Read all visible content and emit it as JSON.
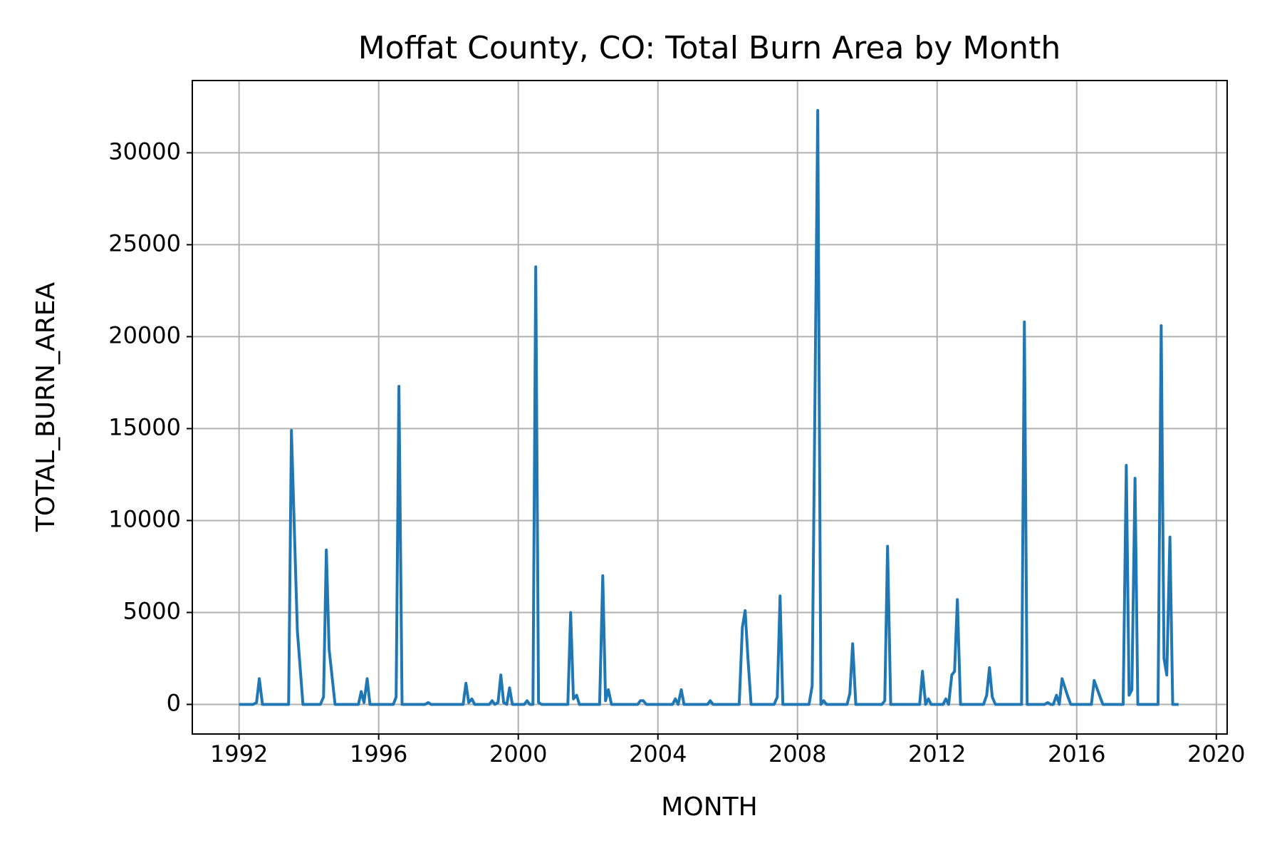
{
  "chart_data": {
    "type": "line",
    "title": "Moffat County, CO: Total Burn Area by Month",
    "x_label": "MONTH",
    "y_label": "TOTAL_BURN_AREA",
    "color": "#1f77b4",
    "grid": true,
    "xlim": [
      1990.66,
      2020.31
    ],
    "ylim": [
      -1610,
      33930
    ],
    "xticks": [
      1992,
      1996,
      2000,
      2004,
      2008,
      2012,
      2016,
      2020
    ],
    "yticks": [
      0,
      5000,
      10000,
      15000,
      20000,
      25000,
      30000
    ],
    "x": [
      1992.0,
      1992.4,
      1992.5,
      1992.58,
      1992.67,
      1993.42,
      1993.5,
      1993.67,
      1993.83,
      1994.33,
      1994.42,
      1994.5,
      1994.58,
      1994.75,
      1995.42,
      1995.5,
      1995.58,
      1995.67,
      1995.75,
      1996.42,
      1996.5,
      1996.58,
      1996.67,
      1997.33,
      1997.42,
      1997.5,
      1998.42,
      1998.5,
      1998.58,
      1998.67,
      1998.75,
      1999.17,
      1999.25,
      1999.33,
      1999.42,
      1999.5,
      1999.58,
      1999.67,
      1999.75,
      1999.83,
      2000.17,
      2000.25,
      2000.33,
      2000.42,
      2000.5,
      2000.58,
      2000.67,
      2000.75,
      2001.42,
      2001.5,
      2001.58,
      2001.67,
      2001.75,
      2002.33,
      2002.42,
      2002.5,
      2002.58,
      2002.67,
      2003.42,
      2003.5,
      2003.58,
      2003.67,
      2004.42,
      2004.5,
      2004.58,
      2004.67,
      2004.75,
      2005.42,
      2005.5,
      2005.58,
      2006.33,
      2006.42,
      2006.5,
      2006.58,
      2006.67,
      2007.33,
      2007.42,
      2007.5,
      2007.58,
      2008.33,
      2008.42,
      2008.58,
      2008.67,
      2008.75,
      2008.83,
      2009.42,
      2009.5,
      2009.58,
      2009.67,
      2010.42,
      2010.5,
      2010.58,
      2010.67,
      2011.5,
      2011.58,
      2011.67,
      2011.75,
      2011.83,
      2012.17,
      2012.25,
      2012.33,
      2012.42,
      2012.5,
      2012.58,
      2012.67,
      2013.33,
      2013.42,
      2013.5,
      2013.58,
      2013.67,
      2014.42,
      2014.5,
      2014.58,
      2015.08,
      2015.17,
      2015.25,
      2015.33,
      2015.42,
      2015.5,
      2015.58,
      2015.75,
      2015.83,
      2016.42,
      2016.5,
      2016.67,
      2016.75,
      2017.33,
      2017.42,
      2017.5,
      2017.58,
      2017.67,
      2017.75,
      2018.33,
      2018.42,
      2018.5,
      2018.58,
      2018.67,
      2018.75,
      2018.92
    ],
    "values": [
      0,
      0,
      100,
      1400,
      0,
      0,
      14900,
      4000,
      0,
      0,
      400,
      8400,
      3000,
      0,
      0,
      700,
      100,
      1400,
      0,
      0,
      400,
      17300,
      0,
      0,
      100,
      0,
      0,
      1150,
      100,
      300,
      0,
      0,
      200,
      0,
      100,
      1600,
      100,
      0,
      900,
      0,
      0,
      200,
      0,
      0,
      23800,
      100,
      0,
      0,
      0,
      5000,
      300,
      500,
      0,
      0,
      7000,
      200,
      800,
      0,
      0,
      200,
      200,
      0,
      0,
      300,
      0,
      800,
      0,
      0,
      200,
      0,
      0,
      4200,
      5100,
      2500,
      0,
      0,
      400,
      5900,
      0,
      0,
      1000,
      32300,
      0,
      200,
      0,
      0,
      600,
      3300,
      0,
      0,
      200,
      8600,
      0,
      0,
      1800,
      0,
      300,
      0,
      0,
      300,
      0,
      1600,
      1800,
      5700,
      0,
      0,
      500,
      2000,
      400,
      0,
      0,
      20800,
      0,
      0,
      100,
      0,
      0,
      500,
      0,
      1400,
      400,
      0,
      0,
      1300,
      400,
      0,
      0,
      13000,
      500,
      800,
      12300,
      0,
      0,
      20600,
      2500,
      1600,
      9100,
      0,
      0
    ]
  }
}
